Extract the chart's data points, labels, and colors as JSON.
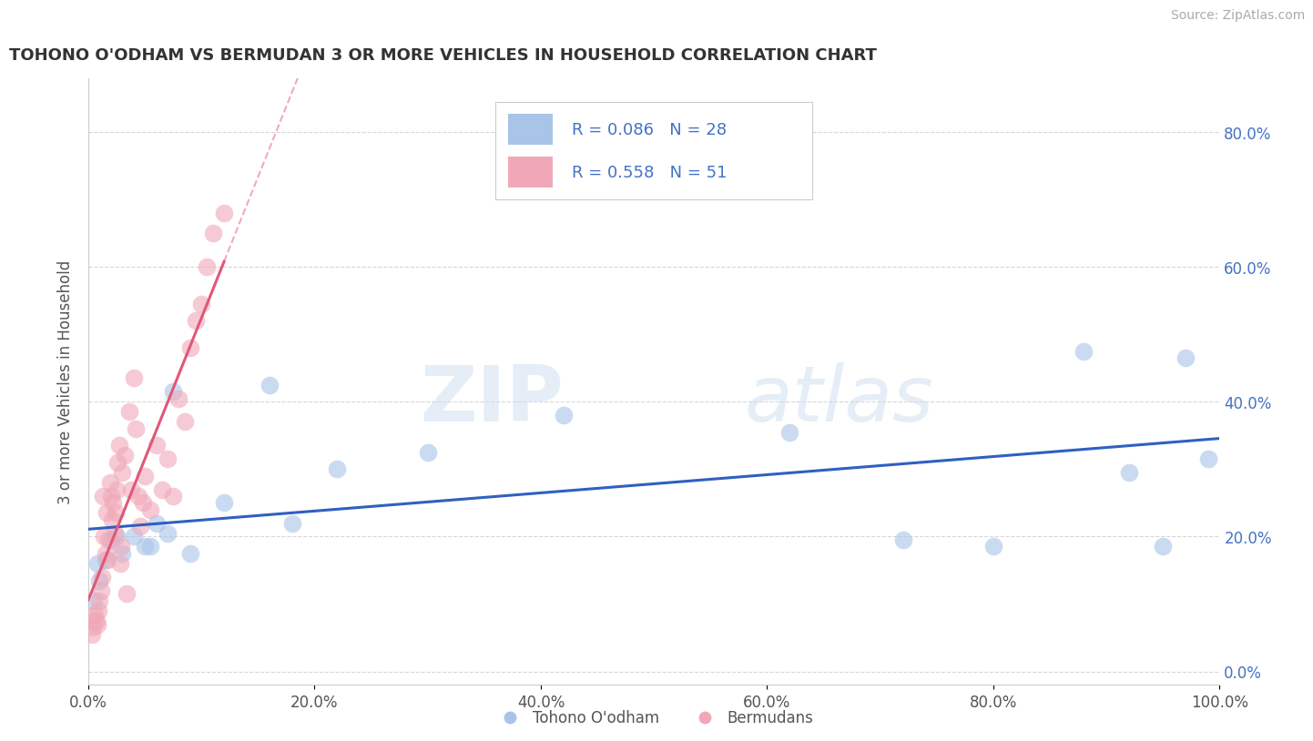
{
  "title": "TOHONO O'ODHAM VS BERMUDAN 3 OR MORE VEHICLES IN HOUSEHOLD CORRELATION CHART",
  "source": "Source: ZipAtlas.com",
  "ylabel": "3 or more Vehicles in Household",
  "legend_labels": [
    "Tohono O'odham",
    "Bermudans"
  ],
  "r_blue": 0.086,
  "n_blue": 28,
  "r_pink": 0.558,
  "n_pink": 51,
  "color_blue": "#a8c4e8",
  "color_pink": "#f0a8b8",
  "line_blue": "#3060c0",
  "line_pink": "#e05878",
  "watermark_zip": "ZIP",
  "watermark_atlas": "atlas",
  "blue_x": [
    0.01,
    0.015,
    0.02,
    0.025,
    0.03,
    0.04,
    0.05,
    0.06,
    0.07,
    0.09,
    0.12,
    0.18,
    0.22,
    0.3,
    0.42,
    0.62,
    0.72,
    0.8,
    0.88,
    0.92,
    0.95,
    0.97,
    0.99,
    0.005,
    0.008,
    0.055,
    0.075,
    0.16
  ],
  "blue_y": [
    0.135,
    0.165,
    0.195,
    0.2,
    0.175,
    0.2,
    0.185,
    0.22,
    0.205,
    0.175,
    0.25,
    0.22,
    0.3,
    0.325,
    0.38,
    0.355,
    0.195,
    0.185,
    0.475,
    0.295,
    0.185,
    0.465,
    0.315,
    0.105,
    0.16,
    0.185,
    0.415,
    0.425
  ],
  "pink_x": [
    0.003,
    0.004,
    0.005,
    0.006,
    0.007,
    0.008,
    0.009,
    0.01,
    0.011,
    0.012,
    0.013,
    0.014,
    0.015,
    0.016,
    0.017,
    0.018,
    0.019,
    0.02,
    0.021,
    0.022,
    0.023,
    0.024,
    0.025,
    0.026,
    0.027,
    0.028,
    0.029,
    0.03,
    0.032,
    0.034,
    0.036,
    0.038,
    0.04,
    0.042,
    0.044,
    0.046,
    0.048,
    0.05,
    0.055,
    0.06,
    0.065,
    0.07,
    0.075,
    0.08,
    0.085,
    0.09,
    0.095,
    0.1,
    0.105,
    0.11,
    0.12
  ],
  "pink_y": [
    0.055,
    0.065,
    0.075,
    0.085,
    0.075,
    0.07,
    0.09,
    0.105,
    0.12,
    0.14,
    0.26,
    0.2,
    0.175,
    0.235,
    0.165,
    0.195,
    0.28,
    0.26,
    0.225,
    0.25,
    0.205,
    0.235,
    0.27,
    0.31,
    0.335,
    0.16,
    0.185,
    0.295,
    0.32,
    0.115,
    0.385,
    0.27,
    0.435,
    0.36,
    0.26,
    0.215,
    0.25,
    0.29,
    0.24,
    0.335,
    0.27,
    0.315,
    0.26,
    0.405,
    0.37,
    0.48,
    0.52,
    0.545,
    0.6,
    0.65,
    0.68
  ],
  "xlim": [
    0.0,
    1.0
  ],
  "ylim": [
    -0.02,
    0.88
  ],
  "y_ticks": [
    0.0,
    0.2,
    0.4,
    0.6,
    0.8
  ],
  "x_ticks": [
    0.0,
    0.2,
    0.4,
    0.6,
    0.8,
    1.0
  ],
  "background_color": "#ffffff",
  "grid_color": "#cccccc"
}
